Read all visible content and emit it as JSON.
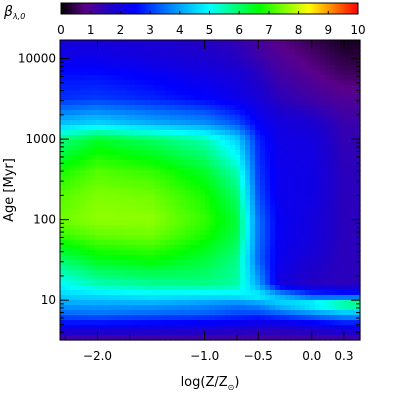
{
  "chart_data": {
    "type": "heatmap",
    "colorbar": {
      "label_symbol": "β",
      "label_subscript": "λ,0",
      "range": [
        0,
        10
      ],
      "ticks": [
        "0",
        "1",
        "2",
        "3",
        "4",
        "5",
        "6",
        "7",
        "8",
        "9",
        "10"
      ],
      "colormap": [
        "#000000",
        "#5a008a",
        "#1f00c8",
        "#0000ff",
        "#0060ff",
        "#00b4ff",
        "#00ffff",
        "#00ff80",
        "#00ff00",
        "#7fff00",
        "#ffff00",
        "#ff8000",
        "#ff0000"
      ]
    },
    "x_axis": {
      "label_main": "log(Z/Z",
      "label_sub": "⊙",
      "label_close": ")",
      "range": [
        -2.35,
        0.45
      ],
      "ticks": [
        {
          "value": -2.0,
          "label": "−2.0"
        },
        {
          "value": -1.0,
          "label": "−1.0"
        },
        {
          "value": -0.5,
          "label": "−0.5"
        },
        {
          "value": 0.0,
          "label": "0.0"
        },
        {
          "value": 0.3,
          "label": "0.3"
        }
      ],
      "minor_ticks": [
        -2.3,
        -1.7,
        -0.7,
        0.0
      ]
    },
    "y_axis": {
      "label": "Age [Myr]",
      "scale": "log",
      "range_myr": [
        3.2,
        17000
      ],
      "ticks": [
        {
          "value": 10,
          "label": "10"
        },
        {
          "value": 100,
          "label": "100"
        },
        {
          "value": 1000,
          "label": "1000"
        },
        {
          "value": 10000,
          "label": "10000"
        }
      ]
    },
    "description_grid": {
      "x": [
        -2.35,
        -2.0,
        -1.5,
        -1.0,
        -0.7,
        -0.5,
        -0.3,
        0.0,
        0.3,
        0.45
      ],
      "log_age": [
        0.5,
        0.7,
        0.85,
        0.95,
        1.05,
        1.2,
        1.5,
        1.8,
        2.0,
        2.3,
        2.6,
        3.0,
        3.2,
        3.5,
        3.8,
        4.0,
        4.23
      ],
      "beta": [
        [
          1.0,
          1.0,
          1.0,
          1.0,
          1.0,
          1.0,
          1.0,
          1.0,
          1.0,
          1.0
        ],
        [
          2.5,
          2.5,
          2.4,
          2.3,
          2.2,
          2.0,
          2.0,
          2.2,
          2.5,
          2.5
        ],
        [
          3.5,
          3.6,
          3.5,
          3.4,
          3.2,
          3.2,
          3.5,
          4.0,
          4.5,
          4.5
        ],
        [
          4.0,
          4.0,
          4.0,
          3.8,
          3.6,
          3.8,
          4.5,
          5.2,
          6.2,
          6.5
        ],
        [
          4.5,
          4.6,
          4.8,
          4.7,
          4.8,
          5.0,
          4.2,
          3.2,
          3.0,
          3.0
        ],
        [
          5.0,
          5.5,
          5.7,
          5.8,
          5.6,
          4.0,
          2.0,
          1.6,
          1.5,
          1.5
        ],
        [
          6.0,
          6.5,
          6.7,
          6.3,
          5.8,
          3.4,
          2.2,
          1.8,
          1.5,
          1.5
        ],
        [
          7.0,
          7.3,
          7.4,
          6.8,
          6.2,
          3.5,
          2.3,
          2.0,
          1.5,
          1.5
        ],
        [
          7.4,
          7.6,
          7.6,
          7.0,
          6.3,
          3.5,
          2.3,
          2.0,
          1.5,
          1.5
        ],
        [
          7.2,
          7.5,
          7.4,
          6.8,
          6.0,
          3.2,
          2.2,
          2.1,
          1.5,
          1.5
        ],
        [
          6.8,
          7.2,
          7.0,
          6.4,
          5.5,
          3.0,
          2.2,
          2.1,
          1.5,
          1.5
        ],
        [
          5.8,
          6.4,
          6.0,
          5.5,
          4.5,
          2.8,
          2.1,
          2.0,
          1.4,
          1.4
        ],
        [
          4.3,
          4.5,
          4.1,
          3.8,
          3.2,
          2.4,
          2.0,
          1.8,
          1.3,
          1.3
        ],
        [
          2.9,
          3.0,
          2.8,
          2.5,
          2.2,
          1.9,
          1.5,
          1.2,
          1.0,
          1.0
        ],
        [
          2.6,
          2.6,
          2.4,
          2.1,
          1.9,
          1.6,
          1.2,
          0.9,
          0.6,
          0.6
        ],
        [
          2.2,
          2.2,
          2.0,
          1.8,
          1.6,
          1.3,
          1.0,
          0.7,
          0.4,
          0.4
        ],
        [
          1.9,
          1.9,
          1.8,
          1.6,
          1.4,
          1.1,
          0.8,
          0.5,
          0.2,
          0.2
        ]
      ]
    }
  }
}
